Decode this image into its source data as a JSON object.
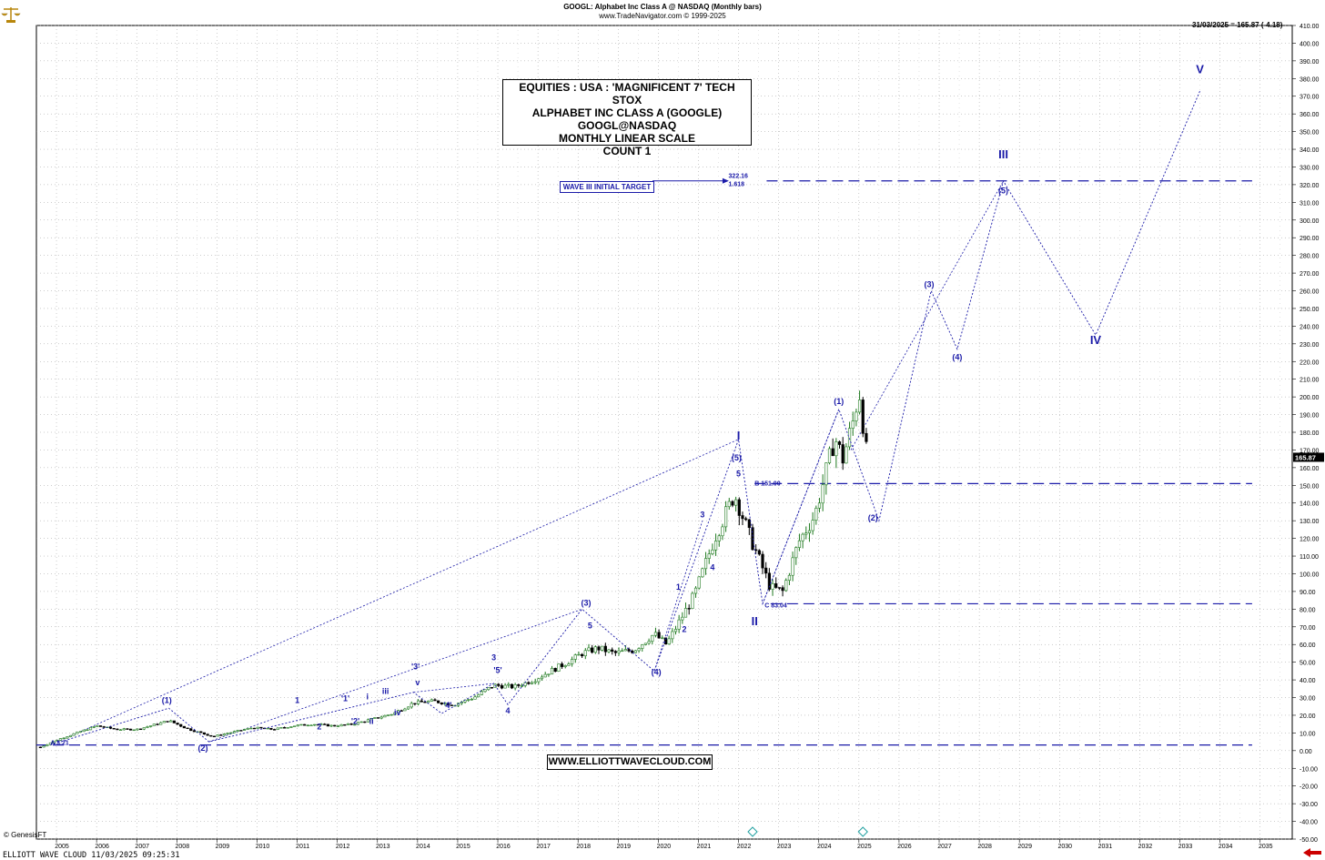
{
  "header": {
    "title": "GOOGL:  Alphabet Inc Class A @ NASDAQ  (Monthly bars)",
    "subtitle": "www.TradeNavigator.com © 1999-2025",
    "last_quote": "31/03/2025 = 165.87 (-4.18)",
    "last_price_tag": "165.87"
  },
  "info_box": {
    "lines": [
      "EQUITIES : USA : 'MAGNIFICENT 7' TECH STOX",
      "ALPHABET INC CLASS A (GOOGLE)",
      "GOOGL@NASDAQ",
      "MONTHLY LINEAR SCALE",
      "COUNT 1"
    ]
  },
  "website_box": "WWW.ELLIOTTWAVECLOUD.COM",
  "target_box": "WAVE III INITIAL TARGET",
  "footer": {
    "left": "ELLIOTT WAVE CLOUD   11/03/2025 09:25:31",
    "genesis": "© GenesisFT"
  },
  "colors": {
    "wave": "#1a1aa8",
    "up": "#1f7a1f",
    "down": "#000000",
    "grid": "#999999",
    "arrow": "#cc0000"
  },
  "chart_data": {
    "type": "line",
    "x_axis": {
      "ticks": [
        "2005",
        "2006",
        "2007",
        "2008",
        "2009",
        "2010",
        "2011",
        "2012",
        "2013",
        "2014",
        "2015",
        "2016",
        "2017",
        "2018",
        "2019",
        "2020",
        "2021",
        "2022",
        "2023",
        "2024",
        "2025",
        "2026",
        "2027",
        "2028",
        "2029",
        "2030",
        "2031",
        "2032",
        "2033",
        "2034",
        "2035"
      ],
      "range": [
        2004.5,
        2035.8
      ]
    },
    "y_axis": {
      "range": [
        -50,
        410
      ],
      "step": 10,
      "grid": true,
      "position": "right"
    },
    "price_series": {
      "name": "GOOGL monthly",
      "x": [
        2004.6,
        2005.0,
        2005.5,
        2006.0,
        2006.5,
        2007.0,
        2007.5,
        2007.8,
        2008.3,
        2008.9,
        2009.3,
        2009.9,
        2010.4,
        2010.9,
        2011.4,
        2011.9,
        2012.4,
        2012.9,
        2013.4,
        2013.9,
        2014.4,
        2014.9,
        2015.4,
        2015.9,
        2016.4,
        2016.9,
        2017.4,
        2017.9,
        2018.1,
        2018.5,
        2018.9,
        2019.4,
        2019.9,
        2020.2,
        2020.6,
        2020.9,
        2021.4,
        2021.9,
        2022.3,
        2022.8,
        2023.1,
        2023.5,
        2023.9,
        2024.4,
        2024.6,
        2024.9,
        2025.0,
        2025.2
      ],
      "y": [
        2,
        6,
        10,
        14,
        12,
        12,
        15,
        17,
        12,
        8,
        10,
        13,
        12,
        14,
        15,
        14,
        15,
        18,
        21,
        27,
        28,
        26,
        30,
        37,
        36,
        40,
        46,
        52,
        55,
        58,
        55,
        57,
        66,
        60,
        76,
        88,
        120,
        145,
        120,
        92,
        90,
        118,
        133,
        177,
        165,
        190,
        205,
        166
      ]
    },
    "wave_labels": [
      {
        "text": "A 3.21",
        "x": 2004.85,
        "y": 3.21
      },
      {
        "text": "(1)",
        "x": 2007.75,
        "y": 27
      },
      {
        "text": "(2)",
        "x": 2008.65,
        "y": 0
      },
      {
        "text": "1",
        "x": 2011.0,
        "y": 27
      },
      {
        "text": "2",
        "x": 2011.55,
        "y": 12
      },
      {
        "text": "'1'",
        "x": 2012.2,
        "y": 28
      },
      {
        "text": "'2'",
        "x": 2012.45,
        "y": 15
      },
      {
        "text": "i",
        "x": 2012.75,
        "y": 29
      },
      {
        "text": "ii",
        "x": 2012.85,
        "y": 15
      },
      {
        "text": "iii",
        "x": 2013.2,
        "y": 32
      },
      {
        "text": "iv",
        "x": 2013.5,
        "y": 20
      },
      {
        "text": "'3'",
        "x": 2013.95,
        "y": 46
      },
      {
        "text": "v",
        "x": 2014.0,
        "y": 37
      },
      {
        "text": "'4'",
        "x": 2014.75,
        "y": 24
      },
      {
        "text": "3",
        "x": 2015.9,
        "y": 51
      },
      {
        "text": "'5'",
        "x": 2016.0,
        "y": 44
      },
      {
        "text": "4",
        "x": 2016.25,
        "y": 21
      },
      {
        "text": "(3)",
        "x": 2018.2,
        "y": 82
      },
      {
        "text": "5",
        "x": 2018.3,
        "y": 69
      },
      {
        "text": "(4)",
        "x": 2019.95,
        "y": 43
      },
      {
        "text": "1",
        "x": 2020.5,
        "y": 91
      },
      {
        "text": "2",
        "x": 2020.65,
        "y": 67
      },
      {
        "text": "3",
        "x": 2021.1,
        "y": 132
      },
      {
        "text": "4",
        "x": 2021.35,
        "y": 102
      },
      {
        "text": "I",
        "x": 2022.0,
        "y": 176
      },
      {
        "text": "(5)",
        "x": 2021.95,
        "y": 164
      },
      {
        "text": "5",
        "x": 2022.0,
        "y": 155
      },
      {
        "text": "B 151.00",
        "x": 2022.4,
        "y": 150
      },
      {
        "text": "C 83.04",
        "x": 2022.65,
        "y": 81
      },
      {
        "text": "II",
        "x": 2022.4,
        "y": 71
      },
      {
        "text": "(1)",
        "x": 2024.5,
        "y": 196
      },
      {
        "text": "(2)",
        "x": 2025.35,
        "y": 130
      },
      {
        "text": "(3)",
        "x": 2026.75,
        "y": 262
      },
      {
        "text": "(4)",
        "x": 2027.45,
        "y": 221
      },
      {
        "text": "III",
        "x": 2028.6,
        "y": 335
      },
      {
        "text": "(5)",
        "x": 2028.6,
        "y": 315
      },
      {
        "text": "IV",
        "x": 2030.9,
        "y": 230
      },
      {
        "text": "V",
        "x": 2033.5,
        "y": 383
      }
    ],
    "level_lines": [
      {
        "value": 322.16,
        "labels": [
          "322.16",
          "1.618"
        ]
      },
      {
        "value": 151.0
      },
      {
        "value": 83.04
      },
      {
        "value": 3.21
      }
    ],
    "wave_path": [
      [
        2004.85,
        3.21
      ],
      [
        2007.8,
        24
      ],
      [
        2008.8,
        5
      ],
      [
        2013.9,
        33
      ],
      [
        2014.6,
        21
      ],
      [
        2015.9,
        38
      ],
      [
        2016.25,
        26
      ],
      [
        2018.1,
        80
      ],
      [
        2019.9,
        45
      ],
      [
        2022.0,
        176
      ],
      [
        2022.6,
        83.04
      ],
      [
        2024.5,
        193
      ],
      [
        2025.5,
        130
      ],
      [
        2026.8,
        260
      ],
      [
        2027.45,
        227
      ],
      [
        2028.6,
        322
      ],
      [
        2030.9,
        235
      ],
      [
        2033.5,
        373
      ]
    ],
    "helper_lines": [
      [
        [
          2004.85,
          3.21
        ],
        [
          2022.0,
          176
        ]
      ],
      [
        [
          2008.8,
          5
        ],
        [
          2018.1,
          80
        ]
      ],
      [
        [
          2013.9,
          33
        ],
        [
          2015.9,
          38
        ]
      ],
      [
        [
          2019.9,
          45
        ],
        [
          2021.1,
          130
        ]
      ],
      [
        [
          2022.6,
          83.04
        ],
        [
          2024.5,
          193
        ]
      ],
      [
        [
          2024.8,
          170
        ],
        [
          2028.6,
          322
        ]
      ]
    ]
  }
}
